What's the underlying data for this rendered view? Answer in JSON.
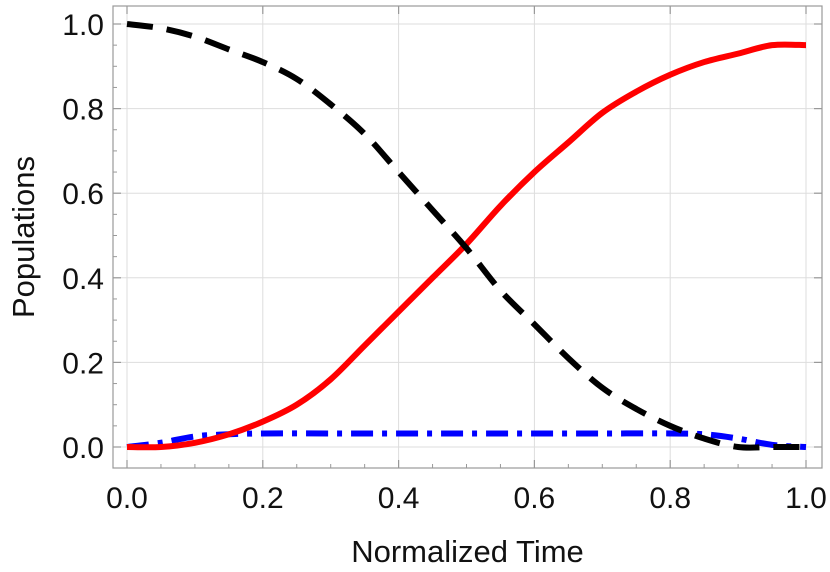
{
  "chart_data": {
    "type": "line",
    "title": "",
    "xlabel": "Normalized Time",
    "ylabel": "Populations",
    "xlim": [
      0.0,
      1.0
    ],
    "ylim": [
      0.0,
      1.0
    ],
    "grid": true,
    "legend": "none",
    "xticks": [
      "0.0",
      "0.2",
      "0.4",
      "0.6",
      "0.8",
      "1.0"
    ],
    "yticks": [
      "0.0",
      "0.2",
      "0.4",
      "0.6",
      "0.8",
      "1.0"
    ],
    "series": [
      {
        "color": "#000000",
        "style": "dashed",
        "x": [
          0.0,
          0.05,
          0.1,
          0.15,
          0.2,
          0.25,
          0.3,
          0.35,
          0.4,
          0.45,
          0.5,
          0.55,
          0.6,
          0.65,
          0.7,
          0.75,
          0.8,
          0.85,
          0.9,
          0.95,
          1.0
        ],
        "y": [
          1.0,
          0.99,
          0.97,
          0.94,
          0.91,
          0.87,
          0.81,
          0.74,
          0.65,
          0.56,
          0.47,
          0.37,
          0.29,
          0.21,
          0.14,
          0.09,
          0.05,
          0.02,
          0.0,
          0.0,
          0.0
        ]
      },
      {
        "color": "#ff0000",
        "style": "solid",
        "x": [
          0.0,
          0.05,
          0.1,
          0.15,
          0.2,
          0.25,
          0.3,
          0.35,
          0.4,
          0.45,
          0.5,
          0.55,
          0.6,
          0.65,
          0.7,
          0.75,
          0.8,
          0.85,
          0.9,
          0.95,
          1.0
        ],
        "y": [
          0.0,
          0.0,
          0.01,
          0.03,
          0.06,
          0.1,
          0.16,
          0.24,
          0.32,
          0.4,
          0.48,
          0.57,
          0.65,
          0.72,
          0.79,
          0.84,
          0.88,
          0.91,
          0.93,
          0.95,
          0.95
        ]
      },
      {
        "color": "#0000ff",
        "style": "dashdot",
        "x": [
          0.0,
          0.05,
          0.1,
          0.15,
          0.2,
          0.3,
          0.4,
          0.5,
          0.6,
          0.7,
          0.8,
          0.85,
          0.9,
          0.95,
          1.0
        ],
        "y": [
          0.0,
          0.01,
          0.025,
          0.03,
          0.032,
          0.032,
          0.032,
          0.032,
          0.032,
          0.032,
          0.032,
          0.03,
          0.02,
          0.005,
          0.0
        ]
      }
    ]
  }
}
